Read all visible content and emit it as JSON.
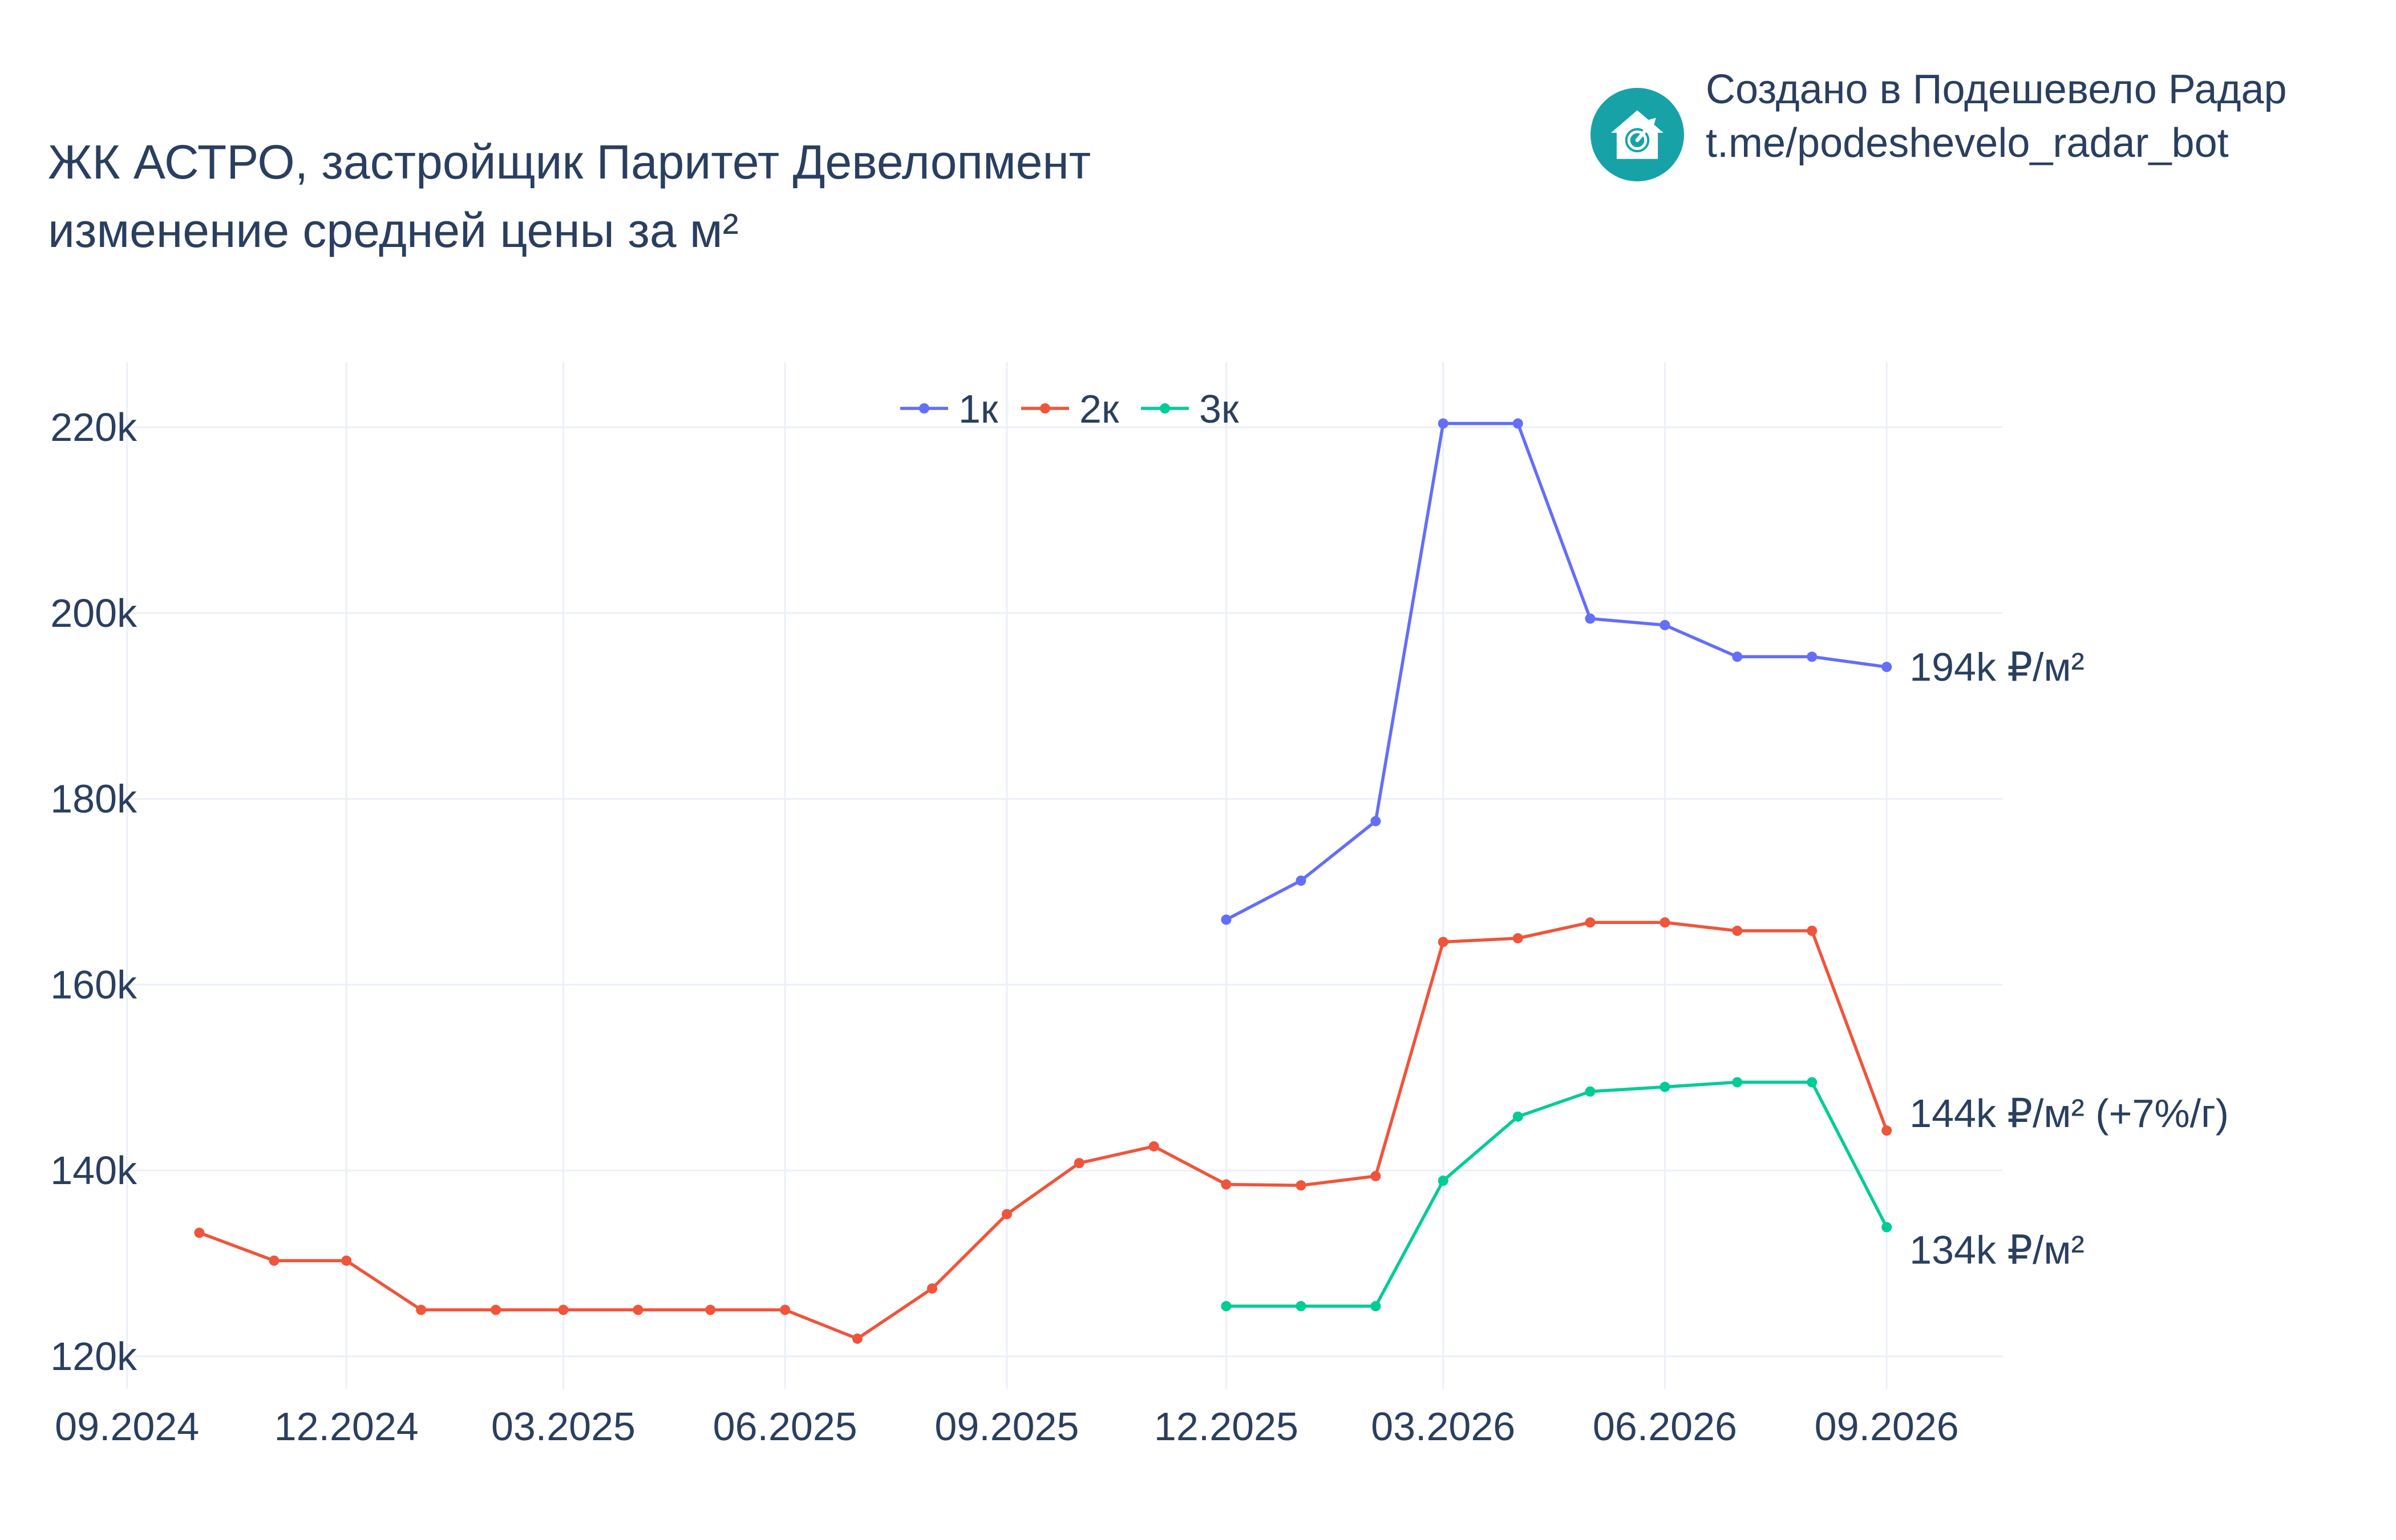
{
  "title": {
    "line1": "ЖК АСТРО, застройщик Паритет Девелопмент",
    "line2": "изменение средней цены за м²"
  },
  "branding": {
    "line1": "Создано в Подешевело Радар",
    "line2": "t.me/podeshevelo_radar_bot",
    "logo_icon": "house-chart-logo-icon",
    "logo_color": "#17a2a8"
  },
  "chart_data": {
    "type": "line",
    "x_tick_labels": [
      "09.2024",
      "12.2024",
      "03.2025",
      "06.2025",
      "09.2025",
      "12.2025",
      "03.2026",
      "06.2026",
      "09.2026"
    ],
    "y_tick_labels": [
      "120k",
      "140k",
      "160k",
      "180k",
      "200k",
      "220k"
    ],
    "y_ticks": [
      120000,
      140000,
      160000,
      180000,
      200000,
      220000
    ],
    "ylim": [
      116500,
      227000
    ],
    "xlim": [
      "2024-08-29",
      "2026-10-19"
    ],
    "grid": true,
    "legend": "top-center",
    "series": [
      {
        "name": "1к",
        "color": "#636efa",
        "end_label": "194k ₽/м²",
        "points": [
          [
            "2025-12-01",
            167000
          ],
          [
            "2026-01-01",
            171200
          ],
          [
            "2026-02-01",
            177600
          ],
          [
            "2026-03-01",
            220400
          ],
          [
            "2026-04-01",
            220400
          ],
          [
            "2026-05-01",
            199400
          ],
          [
            "2026-06-01",
            198700
          ],
          [
            "2026-07-01",
            195300
          ],
          [
            "2026-08-01",
            195300
          ],
          [
            "2026-09-01",
            194200
          ]
        ]
      },
      {
        "name": "2к",
        "color": "#ef553b",
        "end_label": "144k ₽/м² (+7%/г)",
        "points": [
          [
            "2024-10-01",
            133300
          ],
          [
            "2024-11-01",
            130300
          ],
          [
            "2024-12-01",
            130300
          ],
          [
            "2025-01-01",
            125000
          ],
          [
            "2025-02-01",
            125000
          ],
          [
            "2025-03-01",
            125000
          ],
          [
            "2025-04-01",
            125000
          ],
          [
            "2025-05-01",
            125000
          ],
          [
            "2025-06-01",
            125000
          ],
          [
            "2025-07-01",
            121900
          ],
          [
            "2025-08-01",
            127300
          ],
          [
            "2025-09-01",
            135300
          ],
          [
            "2025-10-01",
            140800
          ],
          [
            "2025-11-01",
            142600
          ],
          [
            "2025-12-01",
            138500
          ],
          [
            "2026-01-01",
            138400
          ],
          [
            "2026-02-01",
            139400
          ],
          [
            "2026-03-01",
            164600
          ],
          [
            "2026-04-01",
            165000
          ],
          [
            "2026-05-01",
            166700
          ],
          [
            "2026-06-01",
            166700
          ],
          [
            "2026-07-01",
            165800
          ],
          [
            "2026-08-01",
            165800
          ],
          [
            "2026-09-01",
            144300
          ]
        ]
      },
      {
        "name": "3к",
        "color": "#00cc96",
        "end_label": "134k ₽/м²",
        "points": [
          [
            "2025-12-01",
            125400
          ],
          [
            "2026-01-01",
            125400
          ],
          [
            "2026-02-01",
            125400
          ],
          [
            "2026-03-01",
            138900
          ],
          [
            "2026-04-01",
            145800
          ],
          [
            "2026-05-01",
            148500
          ],
          [
            "2026-06-01",
            149000
          ],
          [
            "2026-07-01",
            149500
          ],
          [
            "2026-08-01",
            149500
          ],
          [
            "2026-09-01",
            133900
          ]
        ]
      }
    ]
  }
}
